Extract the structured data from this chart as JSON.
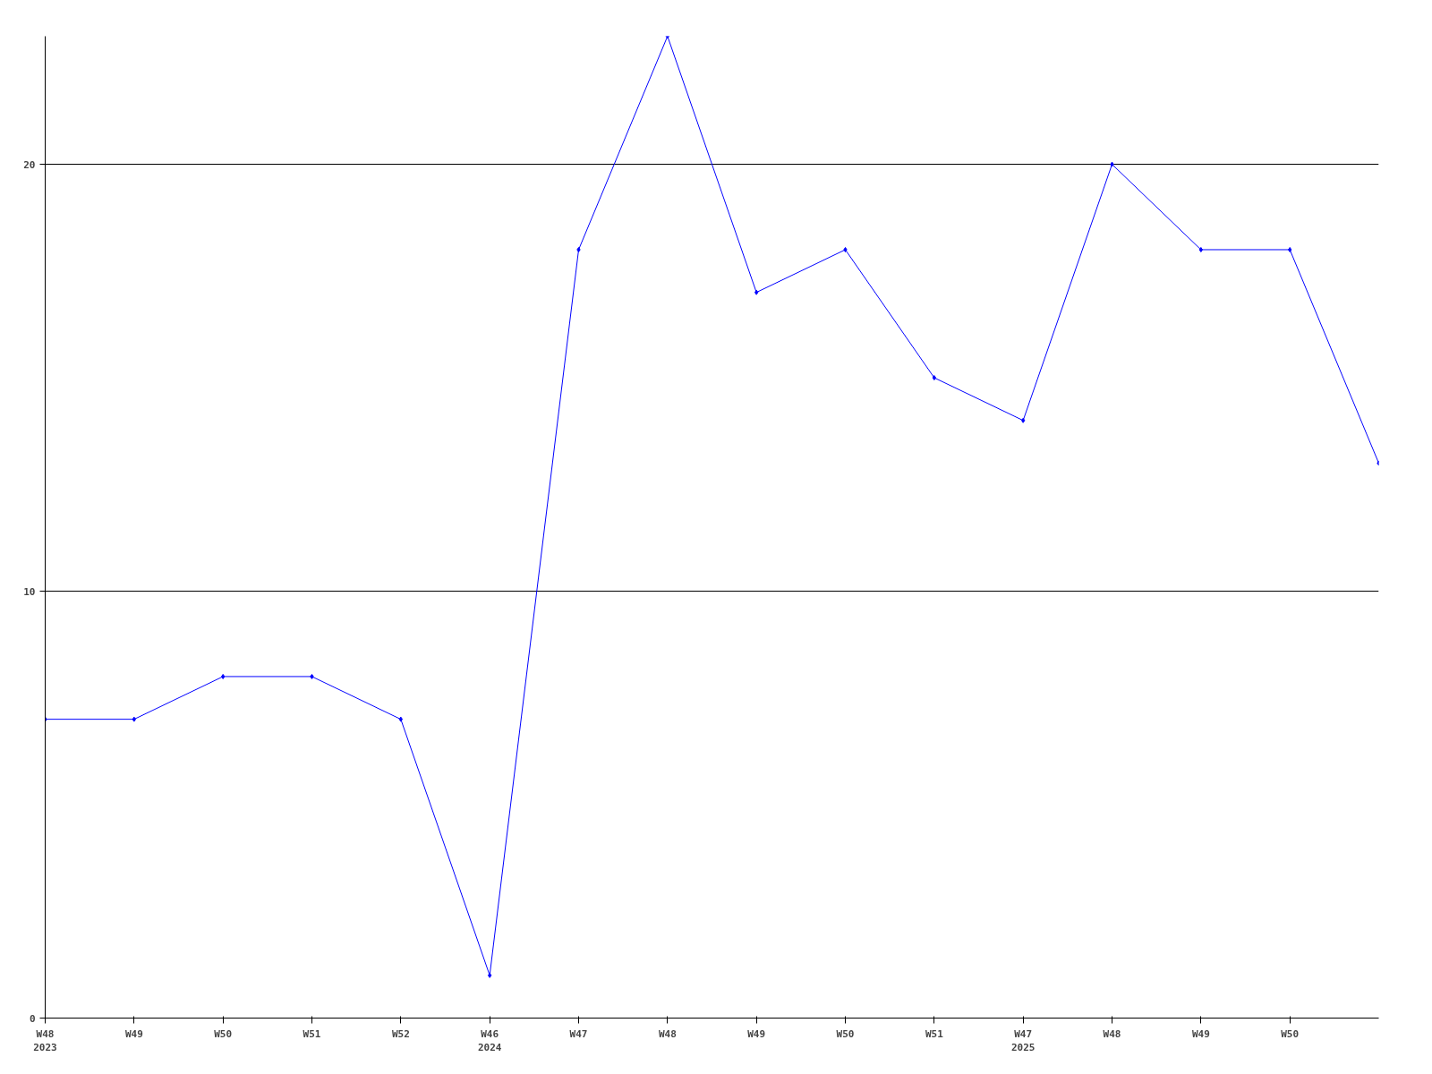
{
  "chart_data": {
    "type": "line",
    "categories": [
      "W48\n2023",
      "W49",
      "W50",
      "W51",
      "W52",
      "W46\n2024",
      "W47",
      "W48",
      "W49",
      "W50",
      "W51",
      "W47\n2025",
      "W48",
      "W49",
      "W50",
      null
    ],
    "series": [
      {
        "color": "#0000ff",
        "values": [
          7,
          7,
          8,
          8,
          7,
          1,
          18,
          23,
          17,
          18,
          15,
          14,
          20,
          18,
          18,
          13
        ]
      }
    ],
    "ylim": [
      0,
      23
    ],
    "yticks": [
      0,
      10,
      20
    ],
    "grid": "y",
    "marker": "diamond",
    "line_style": "solid"
  }
}
